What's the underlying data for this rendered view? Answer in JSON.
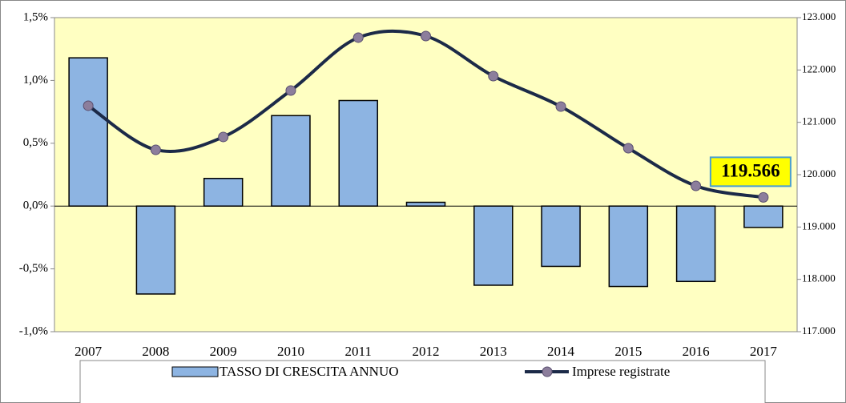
{
  "chart_data": {
    "type": "bar_line",
    "categories": [
      "2007",
      "2008",
      "2009",
      "2010",
      "2011",
      "2012",
      "2013",
      "2014",
      "2015",
      "2016",
      "2017"
    ],
    "series": [
      {
        "name": "TASSO DI CRESCITA ANNUO",
        "type": "bar",
        "color": "#8DB4E2",
        "values": [
          1.18,
          -0.7,
          0.22,
          0.72,
          0.84,
          0.03,
          -0.63,
          -0.48,
          -0.64,
          -0.6,
          -0.17
        ]
      },
      {
        "name": "Imprese registrate",
        "type": "line",
        "axis": "y2",
        "color": "#1C2A48",
        "marker_color": "#8C7E9C",
        "values": [
          121317,
          120475,
          120720,
          121607,
          122618,
          122648,
          121883,
          121301,
          120505,
          119786,
          119566
        ],
        "value_labels": [
          null,
          null,
          null,
          null,
          null,
          null,
          null,
          null,
          null,
          null,
          "119.566"
        ]
      }
    ],
    "ylim": [
      -1.0,
      1.5
    ],
    "yticks": [
      {
        "value": -1.0,
        "label": "-1,0%"
      },
      {
        "value": -0.5,
        "label": "-0,5%"
      },
      {
        "value": 0,
        "label": "0,0%"
      },
      {
        "value": 0.5,
        "label": "0,5%"
      },
      {
        "value": 1.0,
        "label": "1,0%"
      },
      {
        "value": 1.5,
        "label": "1,5%"
      }
    ],
    "y2lim": [
      117000,
      123000
    ],
    "y2ticks": [
      {
        "value": 117000,
        "label": "117.000"
      },
      {
        "value": 118000,
        "label": "118.000"
      },
      {
        "value": 119000,
        "label": "119.000"
      },
      {
        "value": 120000,
        "label": "120.000"
      },
      {
        "value": 121000,
        "label": "121.000"
      },
      {
        "value": 122000,
        "label": "122.000"
      },
      {
        "value": 123000,
        "label": "123.000"
      }
    ],
    "legend": "bottom"
  }
}
